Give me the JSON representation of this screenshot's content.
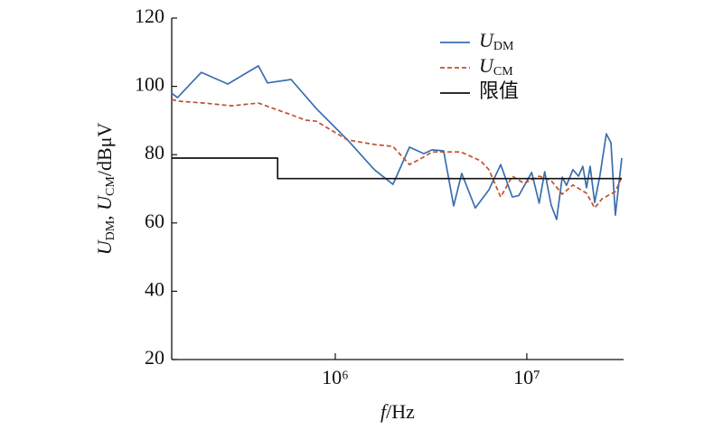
{
  "chart_data": {
    "type": "line",
    "x_label": [
      "f",
      "/Hz"
    ],
    "y_label": [
      "U",
      "DM",
      ", ",
      "U",
      "CM",
      "/dBμV"
    ],
    "xscale": "log",
    "xlim": [
      140000,
      32000000
    ],
    "xticks": [
      {
        "value": 1000000,
        "label": "10⁶"
      },
      {
        "value": 10000000,
        "label": "10⁷"
      }
    ],
    "ylim": [
      20,
      120
    ],
    "yticks": [
      20,
      40,
      60,
      80,
      100,
      120
    ],
    "legend": "upper right",
    "series": [
      {
        "name": "UDM",
        "color": "#3a6eaf",
        "dash": "solid",
        "x": [
          140000,
          150000,
          200000,
          275000,
          397000,
          443000,
          588000,
          796000,
          1160000,
          1600000,
          2000000,
          2440000,
          2900000,
          3200000,
          3680000,
          4150000,
          4570000,
          5380000,
          6340000,
          7300000,
          8400000,
          9080000,
          10600000,
          11600000,
          12400000,
          13400000,
          14300000,
          15300000,
          16100000,
          17400000,
          18600000,
          19600000,
          20500000,
          21400000,
          22600000,
          24100000,
          26000000,
          27500000,
          29000000,
          31300000
        ],
        "values": [
          98,
          96.7,
          104.1,
          100.7,
          106,
          101,
          102,
          93.5,
          84.3,
          75.6,
          71.3,
          82.2,
          80.3,
          81.4,
          81.1,
          65,
          74.5,
          64.4,
          69.7,
          77.1,
          67.6,
          68,
          74.8,
          65.8,
          75,
          65.2,
          61,
          73.4,
          71,
          75.6,
          73.7,
          76.6,
          70.3,
          76.6,
          66,
          74,
          86.1,
          83.5,
          62.3,
          79
        ]
      },
      {
        "name": "UCM",
        "color": "#c0502d",
        "dash": "dashed",
        "x": [
          140000,
          150000,
          207000,
          287000,
          397000,
          588000,
          698000,
          796000,
          1160000,
          1600000,
          2000000,
          2440000,
          2900000,
          3200000,
          3680000,
          4530000,
          5740000,
          6340000,
          7300000,
          8400000,
          9680000,
          11600000,
          13400000,
          15300000,
          17400000,
          20500000,
          22600000,
          24700000,
          29000000,
          31300000
        ],
        "values": [
          96.2,
          95.7,
          95.1,
          94.3,
          95.1,
          91.7,
          90.1,
          89.8,
          84.3,
          83,
          82.4,
          77.1,
          79.3,
          80.8,
          80.8,
          80.8,
          78.2,
          75.6,
          67.6,
          73.7,
          71.6,
          73.7,
          72.4,
          68.4,
          71.1,
          68.7,
          64.4,
          67.1,
          69.2,
          73.4
        ]
      },
      {
        "name": "限值",
        "color": "#111111",
        "dash": "solid",
        "x": [
          140000,
          500000,
          500000,
          31300000
        ],
        "values": [
          79,
          79,
          73,
          73
        ]
      }
    ]
  }
}
